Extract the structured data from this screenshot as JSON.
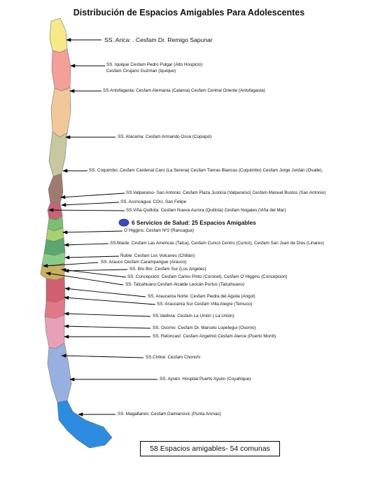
{
  "title": "Distribución de Espacios Amigables Para Adolescentes",
  "legend_label": "6 Servicios de Salud: 25 Espacios Amigables",
  "total_label": "58 Espacios amigables- 54 comunas",
  "labels": [
    "SS. Arica: . Cesfam Dr. Remigo Sapunar",
    "SS. Iquique Cesfam Pedro Pulgar (Alto Hospicio)",
    "Cesfam Cirujano Guzman (Iquique)",
    "SS.Antofagasta: Cesfam Alemania (Calama) Cesfam Central Oriente (Antofagasta)",
    "SS. Atacama: Cesfam Armando Ossa (Copiapó)",
    "SS. Coquimbo:.Cesfam Cardenal Caro (La Serena) Cesfam Tierras Blancas (Coquimbo) Cesfam Jorge Jordán (Ovalle),",
    "SS.Valparaíso- San Antonio: Cesfam Plaza Justicia (Valparaíso) Cesfam Manuel Bustos (San Antonio)",
    "SS. Aconcagua: CGU. San Felipe",
    "SS.Viña-Quillota: Cesfam Nueva Aurora (Quillota) Cesfam Nogales (Viña del Mar)",
    "O´Higgins: Cesfam Nº2 (Rancagua)",
    "SS.Maule: Cesfam Las Américas (Talca), Cesfam Curicó Centro (Curicó), Cesfam San Juan de Dios (Linares)",
    "Ñuble :Cesfam Los Volcanes (Chillán)",
    "SS. Arauco Cesfam Carampangue (Arauco)",
    "SS. Bío Bío. Cesfam Sur (Los Angeles)",
    "SS. Concepción: Cesfam Carlos Pinto (Coronel), Cesfam O´Higgins (Concepción)",
    "SS. Talcahuano:Cesfam Alcalde Leocán Portus (Talcahuano)",
    "SS. Araucanía Norte: Cesfam Piedra del Aguila (Angol)",
    "SS. Araucanía Sur Cesfam Villa Alegre (Temuco)",
    "SS.Valdivia: Cesfam La Unión ( La Unión)",
    "SS. Osorno: Cesfam Dr. Marcelo Lopetegui (Osorno)",
    "SS. Reloncaví: Cesfam Angelmó Cesfam Alerce (Puerto Montt)",
    "SS.Chiloé: Cesfam Chonchi",
    "SS. Aysén: Hospital Puerto Aysén (Coyahique)",
    "SS. Magallanes: Cesfam Damianovic (Punta Arenas)"
  ],
  "colors": {
    "arica": "#f5e98a",
    "tarapaca": "#f4a098",
    "antofagasta": "#f2c89a",
    "atacama": "#c8c8a0",
    "coquimbo": "#a07a70",
    "valparaiso": "#c86478",
    "central": "#7ac070",
    "biobio": "#c8b060",
    "araucania": "#d06070",
    "loslagos": "#e8a0b8",
    "aysen": "#98b0e0",
    "magallanes": "#2e8ce0",
    "legend_dot": "#3a4cc0",
    "arrow": "#000000"
  }
}
